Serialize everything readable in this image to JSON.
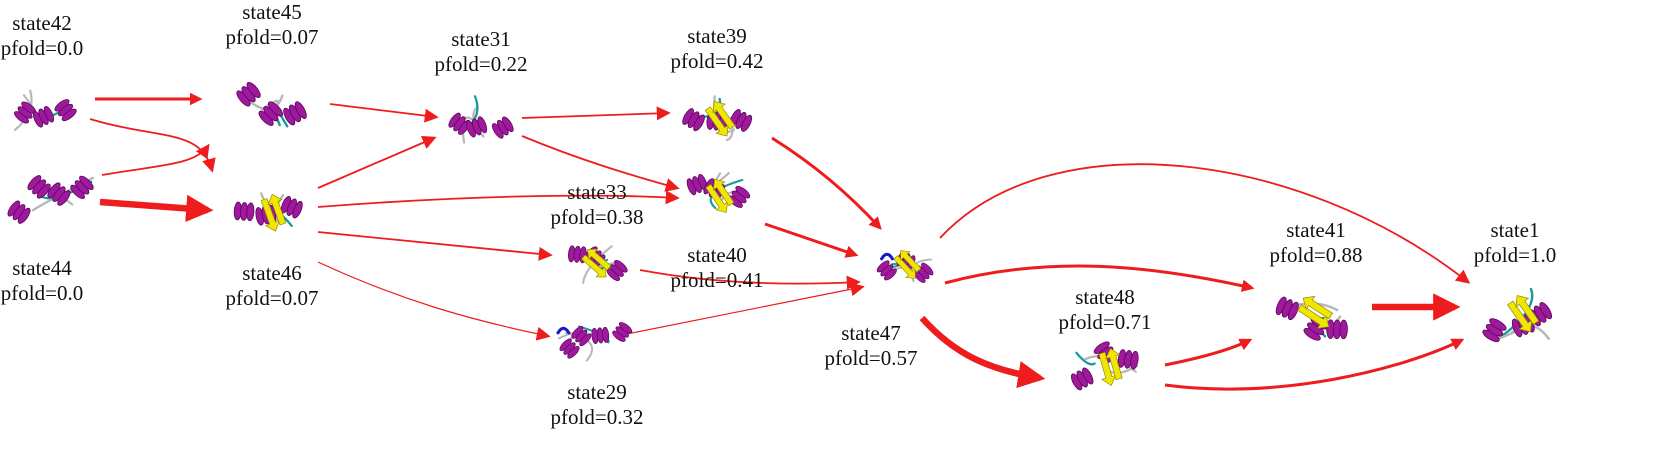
{
  "colors": {
    "arrow": "#ee1c1c",
    "helix": "#a0189e",
    "helix_dark": "#5a0a5a",
    "sheet": "#f0e600",
    "loop": "#b8b8b8",
    "turn": "#1a9a9a",
    "tip": "#1a1acc",
    "label_text": "#111111"
  },
  "nodes": [
    {
      "id": "state42",
      "name": "state42",
      "pfold": "pfold=0.0"
    },
    {
      "id": "state44",
      "name": "state44",
      "pfold": "pfold=0.0"
    },
    {
      "id": "state45",
      "name": "state45",
      "pfold": "pfold=0.07"
    },
    {
      "id": "state46",
      "name": "state46",
      "pfold": "pfold=0.07"
    },
    {
      "id": "state31",
      "name": "state31",
      "pfold": "pfold=0.22"
    },
    {
      "id": "state33",
      "name": "state33",
      "pfold": "pfold=0.38"
    },
    {
      "id": "state29",
      "name": "state29",
      "pfold": "pfold=0.32"
    },
    {
      "id": "state39",
      "name": "state39",
      "pfold": "pfold=0.42"
    },
    {
      "id": "state40",
      "name": "state40",
      "pfold": "pfold=0.41"
    },
    {
      "id": "state47",
      "name": "state47",
      "pfold": "pfold=0.57"
    },
    {
      "id": "state48",
      "name": "state48",
      "pfold": "pfold=0.71"
    },
    {
      "id": "state41",
      "name": "state41",
      "pfold": "pfold=0.88"
    },
    {
      "id": "state1",
      "name": "state1",
      "pfold": "pfold=1.0"
    }
  ],
  "edges": [
    {
      "from": "state42",
      "to": "state45",
      "weight": "medium"
    },
    {
      "from": "state42",
      "to": "state46",
      "weight": "thin"
    },
    {
      "from": "state44",
      "to": "state45",
      "weight": "thin"
    },
    {
      "from": "state44",
      "to": "state46",
      "weight": "thick"
    },
    {
      "from": "state45",
      "to": "state31",
      "weight": "thin"
    },
    {
      "from": "state46",
      "to": "state31",
      "weight": "thin"
    },
    {
      "from": "state46",
      "to": "state40",
      "weight": "thin"
    },
    {
      "from": "state46",
      "to": "state33",
      "weight": "thin"
    },
    {
      "from": "state46",
      "to": "state29",
      "weight": "hairline"
    },
    {
      "from": "state31",
      "to": "state39",
      "weight": "thin"
    },
    {
      "from": "state31",
      "to": "state40",
      "weight": "thin"
    },
    {
      "from": "state39",
      "to": "state47",
      "weight": "medium"
    },
    {
      "from": "state40",
      "to": "state47",
      "weight": "medium"
    },
    {
      "from": "state33",
      "to": "state47",
      "weight": "thin"
    },
    {
      "from": "state29",
      "to": "state47",
      "weight": "hairline"
    },
    {
      "from": "state47",
      "to": "state1",
      "weight": "thin"
    },
    {
      "from": "state47",
      "to": "state41",
      "weight": "medium"
    },
    {
      "from": "state47",
      "to": "state48",
      "weight": "thick"
    },
    {
      "from": "state48",
      "to": "state41",
      "weight": "medium"
    },
    {
      "from": "state48",
      "to": "state1",
      "weight": "medium"
    },
    {
      "from": "state41",
      "to": "state1",
      "weight": "thick"
    }
  ]
}
